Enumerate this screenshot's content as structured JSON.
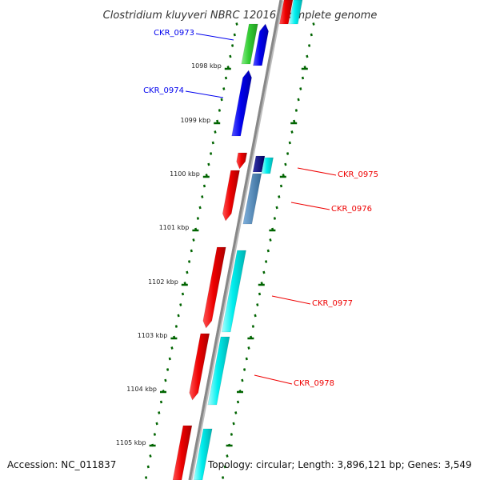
{
  "title": "Clostridium kluyveri NBRC 12016, complete genome",
  "accession": "Accession: NC_011837",
  "topology": "Topology: circular; Length: 3,896,121 bp; Genes: 3,549",
  "colors": {
    "red": "#ee0000",
    "blue": "#0000ee",
    "green": "#33cc33",
    "cyan": "#00eeee",
    "navy": "#000080",
    "steel": "#4682b4",
    "tick": "#006400",
    "backbone": "#888888"
  },
  "ticks": {
    "major_labels": [
      "1098 kbp",
      "1099 kbp",
      "1100 kbp",
      "1101 kbp",
      "1102 kbp",
      "1103 kbp",
      "1104 kbp",
      "1105 kbp"
    ]
  },
  "gene_labels": [
    {
      "text": "CKR_0973",
      "color": "blue-label"
    },
    {
      "text": "CKR_0974",
      "color": "blue-label"
    },
    {
      "text": "CKR_0975",
      "color": "red-label"
    },
    {
      "text": "CKR_0976",
      "color": "red-label"
    },
    {
      "text": "CKR_0977",
      "color": "red-label"
    },
    {
      "text": "CKR_0978",
      "color": "red-label"
    }
  ]
}
